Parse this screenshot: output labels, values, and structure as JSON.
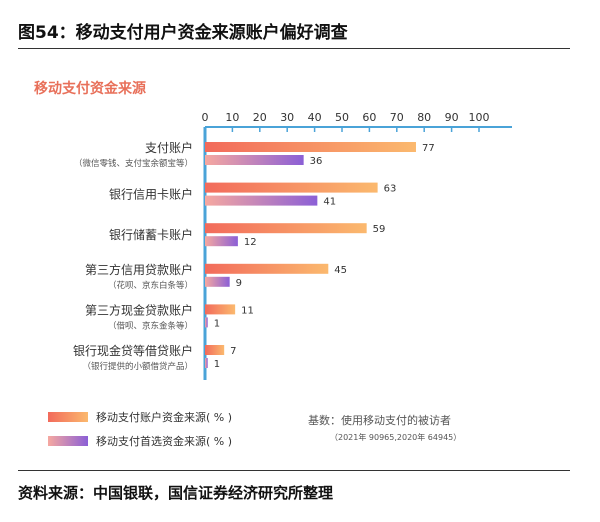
{
  "figure_title": "图54：移动支付用户资金来源账户偏好调查",
  "source_note": "资料来源：中国银联，国信证券经济研究所整理",
  "chart_data": {
    "type": "bar",
    "orientation": "horizontal",
    "title": "移动支付资金来源",
    "x_ticks": [
      "0",
      "10",
      "20",
      "30",
      "40",
      "50",
      "60",
      "70",
      "80",
      "90",
      "100"
    ],
    "xlim": [
      0,
      100
    ],
    "grid": false,
    "legend_position": "bottom-left",
    "categories": [
      {
        "label": "支付账户",
        "sublabel": "（微信零钱、支付宝余额宝等）"
      },
      {
        "label": "银行信用卡账户",
        "sublabel": ""
      },
      {
        "label": "银行储蓄卡账户",
        "sublabel": ""
      },
      {
        "label": "第三方信用贷款账户",
        "sublabel": "（花呗、京东白条等）"
      },
      {
        "label": "第三方现金贷款账户",
        "sublabel": "（借呗、京东金条等）"
      },
      {
        "label": "银行现金贷等借贷账户",
        "sublabel": "（银行提供的小额借贷产品）"
      }
    ],
    "series": [
      {
        "name": "移动支付账户资金来源( % )",
        "values": [
          77,
          63,
          59,
          45,
          11,
          7
        ],
        "color_start": "#f26a5b",
        "color_end": "#fbb96e"
      },
      {
        "name": "移动支付首选资金来源( % )",
        "values": [
          36,
          41,
          12,
          9,
          1,
          1
        ],
        "color_start": "#f6a8a0",
        "color_end": "#8b5fd6"
      }
    ],
    "basis_note": "基数：使用移动支付的被访者",
    "basis_subnote": "（2021年 90965,2020年 64945）",
    "colors": {
      "title": "#e8705a",
      "axis": "#4aa3d8",
      "text": "#333333",
      "note": "#555555"
    }
  }
}
